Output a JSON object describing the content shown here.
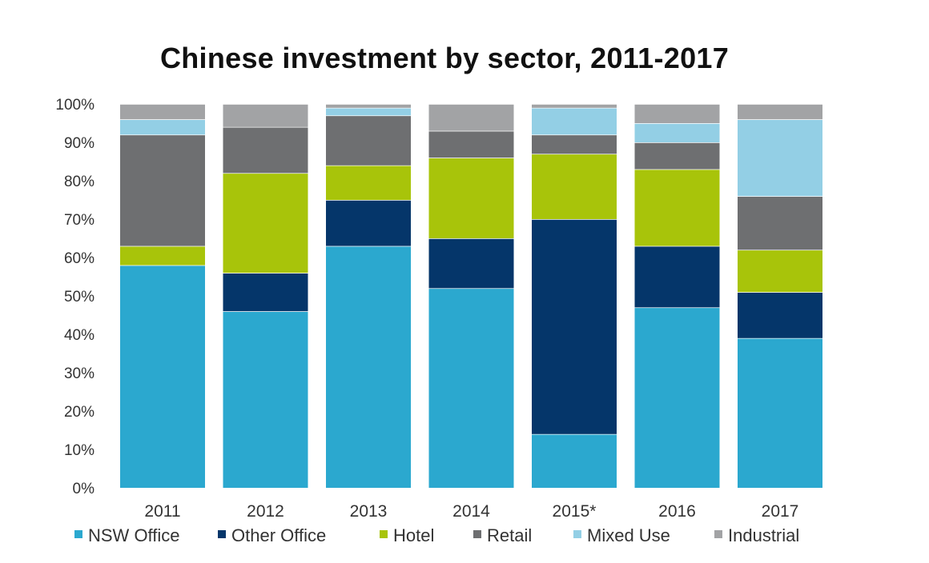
{
  "chart_data": {
    "type": "bar",
    "stacked": true,
    "title": "Chinese investment by sector, 2011-2017",
    "xlabel": "",
    "ylabel": "",
    "ylim": [
      0,
      100
    ],
    "y_ticks": [
      "0%",
      "10%",
      "20%",
      "30%",
      "40%",
      "50%",
      "60%",
      "70%",
      "80%",
      "90%",
      "100%"
    ],
    "categories": [
      "2011",
      "2012",
      "2013",
      "2014",
      "2015*",
      "2016",
      "2017"
    ],
    "series": [
      {
        "name": "NSW Office",
        "color": "#2BA8CF",
        "values": [
          58,
          46,
          63,
          52,
          14,
          47,
          39
        ]
      },
      {
        "name": "Other Office",
        "color": "#05366A",
        "values": [
          0,
          10,
          12,
          13,
          56,
          16,
          12
        ]
      },
      {
        "name": "Hotel",
        "color": "#A8C40A",
        "values": [
          5,
          26,
          9,
          21,
          17,
          20,
          11
        ]
      },
      {
        "name": "Retail",
        "color": "#6E6F71",
        "values": [
          29,
          12,
          13,
          7,
          5,
          7,
          14
        ]
      },
      {
        "name": "Mixed Use",
        "color": "#93CFE5",
        "values": [
          4,
          0,
          2,
          0,
          7,
          5,
          20
        ]
      },
      {
        "name": "Industrial",
        "color": "#A2A3A5",
        "values": [
          4,
          6,
          1,
          7,
          1,
          5,
          4
        ]
      }
    ],
    "legend_position": "bottom",
    "grid": false
  }
}
